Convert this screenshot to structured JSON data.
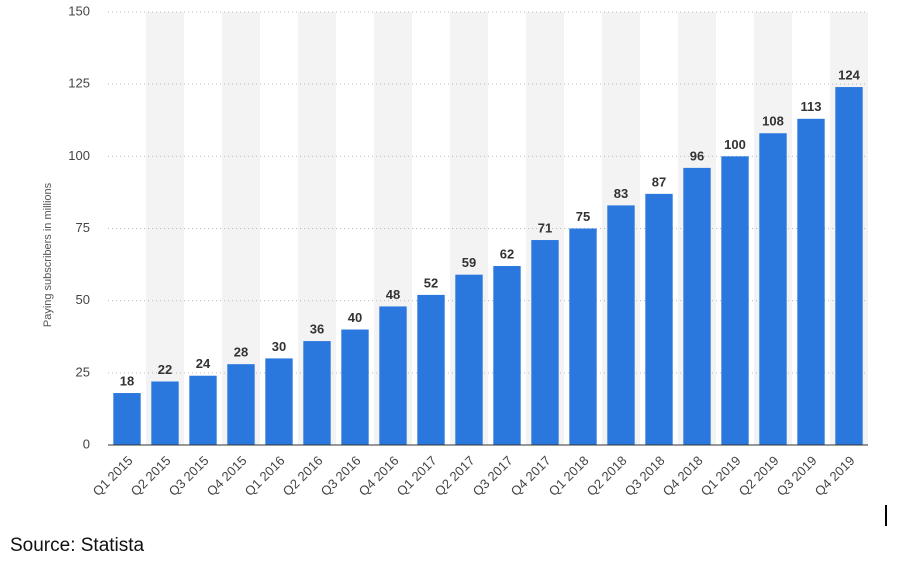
{
  "chart_data": {
    "type": "bar",
    "y_label": "Paying subscribers in millions",
    "categories": [
      "Q1 2015",
      "Q2 2015",
      "Q3 2015",
      "Q4 2015",
      "Q1 2016",
      "Q2 2016",
      "Q3 2016",
      "Q4 2016",
      "Q1 2017",
      "Q2 2017",
      "Q3 2017",
      "Q4 2017",
      "Q1 2018",
      "Q2 2018",
      "Q3 2018",
      "Q4 2018",
      "Q1 2019",
      "Q2 2019",
      "Q3 2019",
      "Q4 2019"
    ],
    "values": [
      18,
      22,
      24,
      28,
      30,
      36,
      40,
      48,
      52,
      59,
      62,
      71,
      75,
      83,
      87,
      96,
      100,
      108,
      113,
      124
    ],
    "color": "#2a77dd",
    "ylim": [
      0,
      150
    ],
    "yticks": [
      0,
      25,
      50,
      75,
      100,
      125,
      150
    ],
    "grid": true,
    "source": "Source: Statista"
  }
}
